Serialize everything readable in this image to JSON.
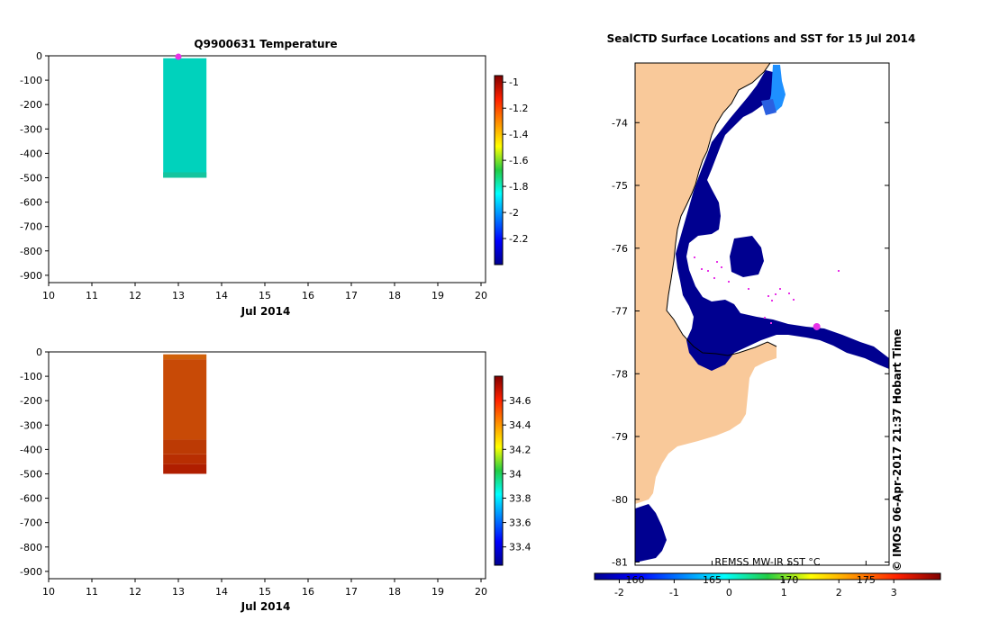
{
  "chart_data": [
    {
      "type": "heatmap",
      "title": "Q9900631  Temperature",
      "xlabel": "Jul 2014",
      "ylabel": "",
      "x_ticks": [
        "10",
        "11",
        "12",
        "13",
        "14",
        "15",
        "16",
        "17",
        "18",
        "19",
        "20"
      ],
      "xlim": [
        10,
        20
      ],
      "y_ticks": [
        "0",
        "-100",
        "-200",
        "-300",
        "-400",
        "-500",
        "-600",
        "-700",
        "-800",
        "-900"
      ],
      "ylim": [
        -930,
        0
      ],
      "colorbar_ticks": [
        "-1",
        "-1.2",
        "-1.4",
        "-1.6",
        "-1.8",
        "-2",
        "-2.2"
      ],
      "colorbar_range": [
        -2.4,
        -0.95
      ],
      "profile": {
        "x_start": 12.65,
        "x_end": 13.65,
        "depth_top": -10,
        "depth_bottom": -500,
        "value": -1.85
      },
      "surface_marker": {
        "x": 13,
        "y": 0
      }
    },
    {
      "type": "heatmap",
      "title": "",
      "xlabel": "Jul 2014",
      "ylabel": "",
      "x_ticks": [
        "10",
        "11",
        "12",
        "13",
        "14",
        "15",
        "16",
        "17",
        "18",
        "19",
        "20"
      ],
      "xlim": [
        10,
        20
      ],
      "y_ticks": [
        "0",
        "-100",
        "-200",
        "-300",
        "-400",
        "-500",
        "-600",
        "-700",
        "-800",
        "-900"
      ],
      "ylim": [
        -930,
        0
      ],
      "colorbar_ticks": [
        "34.6",
        "34.4",
        "34.2",
        "34",
        "33.8",
        "33.6",
        "33.4"
      ],
      "colorbar_range": [
        33.25,
        34.8
      ],
      "profile": {
        "x_start": 12.65,
        "x_end": 13.65,
        "depth_top": -10,
        "depth_bottom": -500,
        "value": 34.5
      }
    },
    {
      "type": "heatmap",
      "title": "SealCTD Surface Locations and SST for 15 Jul 2014",
      "xlabel": "",
      "ylabel": "",
      "lat_ticks": [
        "-74",
        "-75",
        "-76",
        "-77",
        "-78",
        "-79",
        "-80",
        "-81"
      ],
      "lat_range": [
        -73.05,
        -81.05
      ],
      "lon_ticks": [
        "160",
        "165",
        "170",
        "175"
      ],
      "lon_range": [
        160,
        176.5
      ],
      "colorbar_ticks": [
        "-2",
        "-1",
        "0",
        "1",
        "2",
        "3"
      ],
      "colorbar_range": [
        -2.45,
        3.85
      ],
      "colorbar_label": "REMSS MW-IR SST °C",
      "location_marker": {
        "lon": 171.8,
        "lat": -77.25
      }
    }
  ],
  "footer": {
    "credit": "IMOS 06-Apr-2017 21:37 Hobart Time",
    "copyright": "©"
  },
  "colors": {
    "land": "#f9c99a",
    "ice_edge": "#000000",
    "sea_cold": "#000090",
    "marker": "#e832e8",
    "temp_profile": "#00d2bc",
    "sal_profile": "#c84a06"
  }
}
